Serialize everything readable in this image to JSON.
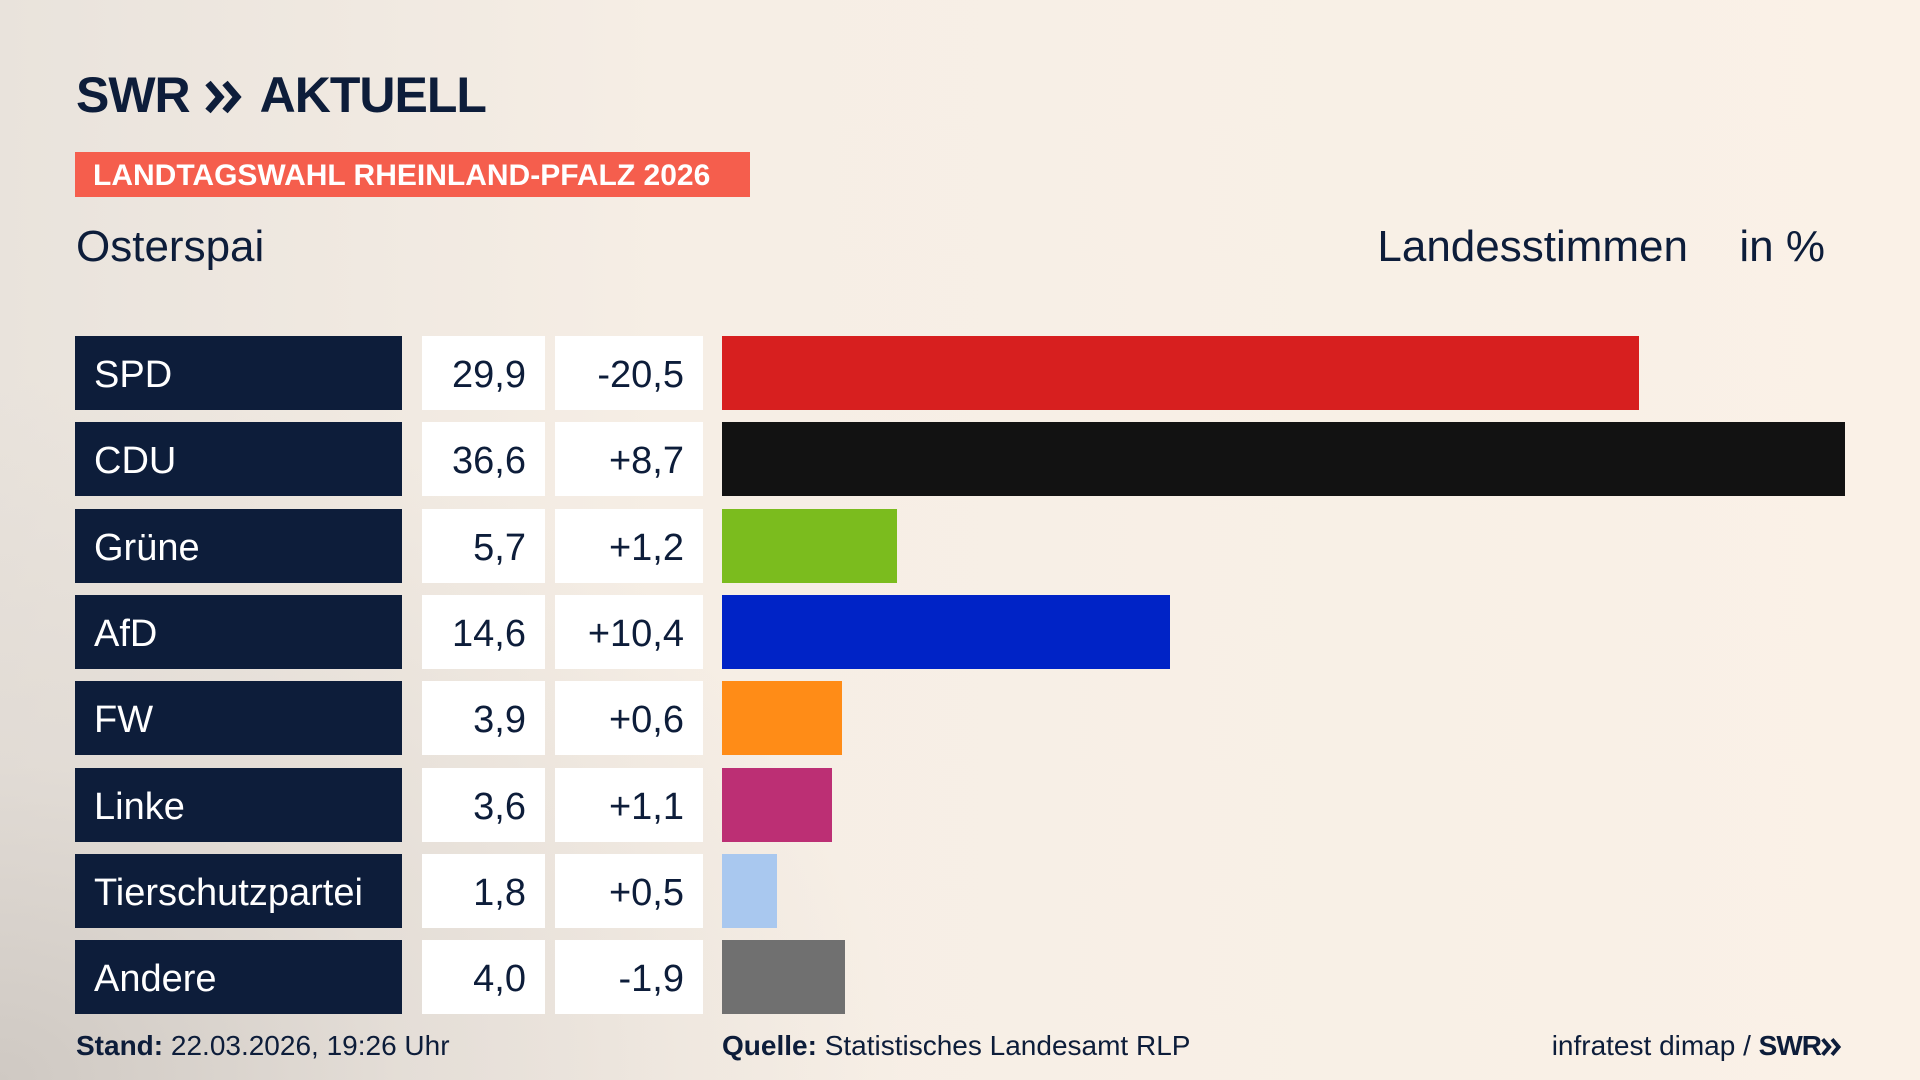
{
  "header": {
    "brand": "SWR",
    "product": "AKTUELL",
    "tag": "LANDTAGSWAHL RHEINLAND-PFALZ 2026"
  },
  "chart_data": {
    "type": "bar",
    "orientation": "horizontal",
    "subtitle": "Osterspai",
    "value_caption": "Landesstimmen",
    "unit": "in %",
    "categories": [
      "SPD",
      "CDU",
      "Grüne",
      "AfD",
      "FW",
      "Linke",
      "Tierschutzpartei",
      "Andere"
    ],
    "values": [
      29.9,
      36.6,
      5.7,
      14.6,
      3.9,
      3.6,
      1.8,
      4.0
    ],
    "value_labels": [
      "29,9",
      "36,6",
      "5,7",
      "14,6",
      "3,9",
      "3,6",
      "1,8",
      "4,0"
    ],
    "changes": [
      "-20,5",
      "+8,7",
      "+1,2",
      "+10,4",
      "+0,6",
      "+1,1",
      "+0,5",
      "-1,9"
    ],
    "colors": [
      "#d71f1f",
      "#121212",
      "#7bbc1e",
      "#0023c6",
      "#ff8c17",
      "#bc2f74",
      "#a9c8ef",
      "#707070"
    ]
  },
  "footer": {
    "stand_label": "Stand:",
    "stand": "22.03.2026, 19:26 Uhr",
    "source_label": "Quelle:",
    "source": "Statistisches Landesamt RLP",
    "institute": "infratest dimap /",
    "brand": "SWR"
  }
}
